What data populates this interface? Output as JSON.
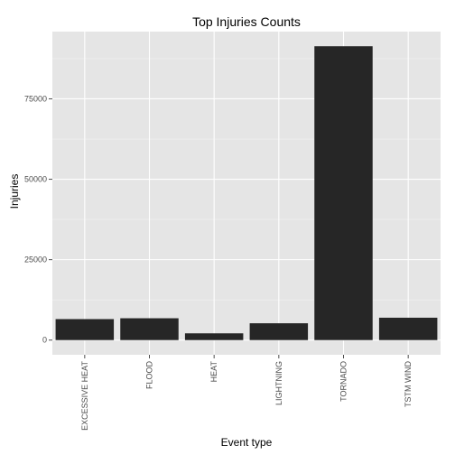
{
  "chart_data": {
    "type": "bar",
    "title": "Top Injuries Counts",
    "xlabel": "Event type",
    "ylabel": "Injuries",
    "categories": [
      "EXCESSIVE HEAT",
      "FLOOD",
      "HEAT",
      "LIGHTNING",
      "TORNADO",
      "TSTM WIND"
    ],
    "values": [
      6525,
      6789,
      2100,
      5230,
      91346,
      6957
    ],
    "ylim": [
      -4570,
      95900
    ],
    "yticks": [
      0,
      25000,
      50000,
      75000
    ],
    "ytick_labels": [
      "0",
      "25000",
      "50000",
      "75000"
    ],
    "grid": true,
    "legend": "none",
    "colors": {
      "panel": "#e5e5e5",
      "grid_major": "#ffffff",
      "grid_minor": "#f2f2f2",
      "bar": "#262626",
      "tick": "#4d4d4d"
    }
  }
}
